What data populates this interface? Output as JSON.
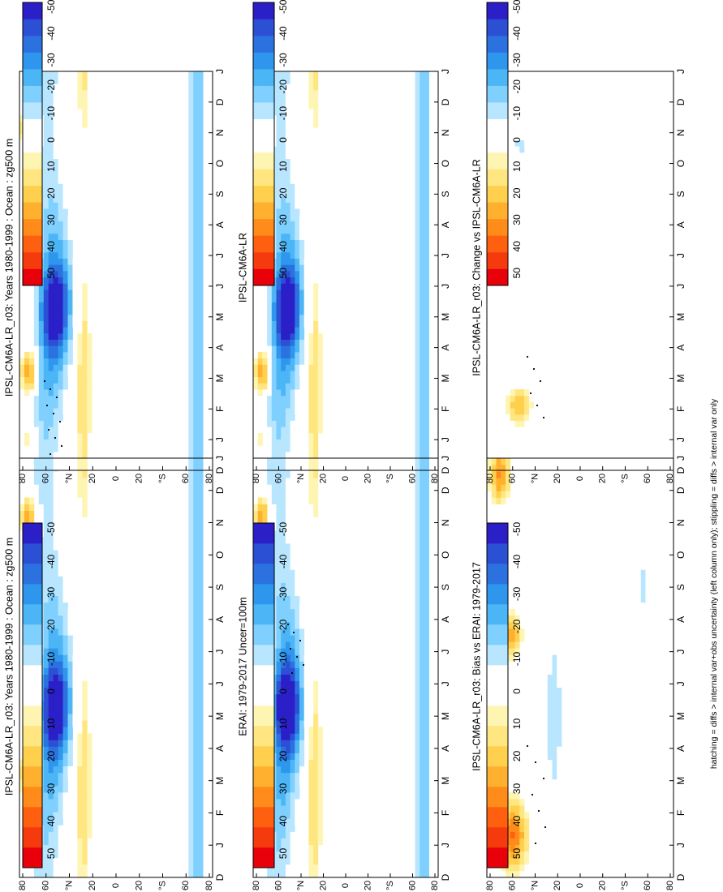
{
  "footer_note": "hatching = diffs > internal var+obs uncertainty (left column only); stippling = diffs > internal var only",
  "palette": [
    "#e8000b",
    "#f53a0d",
    "#ff6010",
    "#ff8c1a",
    "#ffb02e",
    "#ffd04d",
    "#ffe680",
    "#fff5b3",
    "#ffffff",
    "#ffffff",
    "#b8e6ff",
    "#7fd0ff",
    "#4cb5f5",
    "#2e96ec",
    "#2b72e0",
    "#2b50d4",
    "#2b1fc8"
  ],
  "colorbar_labels": [
    "50",
    "40",
    "30",
    "20",
    "10",
    "0",
    "-10",
    "-20",
    "-30",
    "-40",
    "-50"
  ],
  "x_ticks": [
    "D",
    "J",
    "F",
    "M",
    "A",
    "M",
    "J",
    "J",
    "A",
    "S",
    "O",
    "N",
    "D",
    "J"
  ],
  "y_ticks": [
    "80",
    "60",
    "°N",
    "20",
    "0",
    "20",
    "°S",
    "60",
    "80"
  ],
  "panels": [
    {
      "id": "model-left",
      "title": "IPSL-CM6A-LR_r03: Years 1980-1999 : Ocean : zg500 m"
    },
    {
      "id": "model-right",
      "title": "IPSL-CM6A-LR_r03: Years 1980-1999 : Ocean : zg500 m"
    },
    {
      "id": "obs",
      "title": "ERAI: 1979-2017 Uncer=100m"
    },
    {
      "id": "ref-model",
      "title": "IPSL-CM6A-LR"
    },
    {
      "id": "bias",
      "title": "IPSL-CM6A-LR_r03: Bias vs ERAI: 1979-2017"
    },
    {
      "id": "change",
      "title": "IPSL-CM6A-LR_r03: Change vs IPSL-CM6A-LR"
    }
  ],
  "chart_data": [
    {
      "type": "heatmap",
      "title": "IPSL-CM6A-LR_r03: Years 1980-1999 : Ocean : zg500 m",
      "x": [
        "D",
        "J",
        "F",
        "M",
        "A",
        "M",
        "J",
        "J",
        "A",
        "S",
        "O",
        "N",
        "D",
        "J"
      ],
      "y": [
        "80",
        "60",
        "°N",
        "20",
        "0",
        "20",
        "°S",
        "60",
        "80"
      ],
      "colorbar": [
        50,
        40,
        30,
        20,
        10,
        0,
        -10,
        -20,
        -30,
        -40,
        -50
      ]
    },
    {
      "type": "heatmap",
      "title": "IPSL-CM6A-LR_r03: Years 1980-1999 : Ocean : zg500 m",
      "x": [
        "D",
        "J",
        "F",
        "M",
        "A",
        "M",
        "J",
        "J",
        "A",
        "S",
        "O",
        "N",
        "D",
        "J"
      ],
      "y": [
        "80",
        "60",
        "°N",
        "20",
        "0",
        "20",
        "°S",
        "60",
        "80"
      ],
      "colorbar": [
        50,
        40,
        30,
        20,
        10,
        0,
        -10,
        -20,
        -30,
        -40,
        -50
      ]
    },
    {
      "type": "heatmap",
      "title": "ERAI: 1979-2017 Uncer=100m",
      "x": [
        "D",
        "J",
        "F",
        "M",
        "A",
        "M",
        "J",
        "J",
        "A",
        "S",
        "O",
        "N",
        "D",
        "J"
      ],
      "y": [
        "80",
        "60",
        "°N",
        "20",
        "0",
        "20",
        "°S",
        "60",
        "80"
      ],
      "colorbar": [
        50,
        40,
        30,
        20,
        10,
        0,
        -10,
        -20,
        -30,
        -40,
        -50
      ]
    },
    {
      "type": "heatmap",
      "title": "IPSL-CM6A-LR",
      "x": [
        "D",
        "J",
        "F",
        "M",
        "A",
        "M",
        "J",
        "J",
        "A",
        "S",
        "O",
        "N",
        "D",
        "J"
      ],
      "y": [
        "80",
        "60",
        "°N",
        "20",
        "0",
        "20",
        "°S",
        "60",
        "80"
      ],
      "colorbar": [
        50,
        40,
        30,
        20,
        10,
        0,
        -10,
        -20,
        -30,
        -40,
        -50
      ]
    },
    {
      "type": "heatmap",
      "title": "IPSL-CM6A-LR_r03: Bias vs ERAI: 1979-2017",
      "x": [
        "D",
        "J",
        "F",
        "M",
        "A",
        "M",
        "J",
        "J",
        "A",
        "S",
        "O",
        "N",
        "D",
        "J"
      ],
      "y": [
        "80",
        "60",
        "°N",
        "20",
        "0",
        "20",
        "°S",
        "60",
        "80"
      ],
      "colorbar": [
        50,
        40,
        30,
        20,
        10,
        0,
        -10,
        -20,
        -30,
        -40,
        -50
      ]
    },
    {
      "type": "heatmap",
      "title": "IPSL-CM6A-LR_r03: Change vs IPSL-CM6A-LR",
      "x": [
        "D",
        "J",
        "F",
        "M",
        "A",
        "M",
        "J",
        "J",
        "A",
        "S",
        "O",
        "N",
        "D",
        "J"
      ],
      "y": [
        "80",
        "60",
        "°N",
        "20",
        "0",
        "20",
        "°S",
        "60",
        "80"
      ],
      "colorbar": [
        50,
        40,
        30,
        20,
        10,
        0,
        -10,
        -20,
        -30,
        -40,
        -50
      ]
    }
  ]
}
